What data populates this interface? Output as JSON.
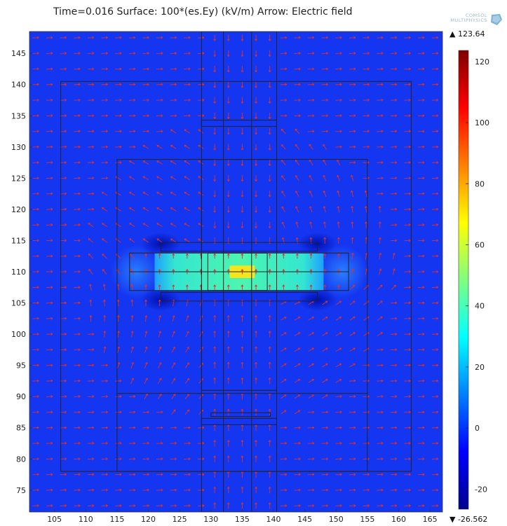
{
  "title": "Time=0.016  Surface: 100*(es.Ey) (kV/m) Arrow: Electric field",
  "logo": {
    "line1": "COMSOL",
    "line2": "MULTIPHYSICS"
  },
  "chart_data": {
    "type": "heatmap",
    "title": "Time=0.016  Surface: 100*(es.Ey) (kV/m) Arrow: Electric field",
    "xlim": [
      101,
      167
    ],
    "ylim": [
      71.5,
      148.5
    ],
    "x_ticks": [
      105,
      110,
      115,
      120,
      125,
      130,
      135,
      140,
      145,
      150,
      155,
      160,
      165
    ],
    "y_ticks": [
      75,
      80,
      85,
      90,
      95,
      100,
      105,
      110,
      115,
      120,
      125,
      130,
      135,
      140,
      145
    ],
    "colorbar": {
      "min": -26.562,
      "max": 123.64,
      "max_label": "▲ 123.64",
      "min_label": "▼ -26.562",
      "ticks": [
        -20,
        0,
        20,
        40,
        60,
        80,
        100,
        120
      ],
      "colormap": "jet"
    },
    "field_regions": [
      {
        "name": "background",
        "value": 0
      },
      {
        "name": "gap-between-plates",
        "x": [
          117,
          152
        ],
        "y": [
          107,
          113
        ],
        "value": 45
      },
      {
        "name": "center-hotspot",
        "x": [
          133,
          137
        ],
        "y": [
          109,
          111
        ],
        "value": 75
      }
    ],
    "arrow_color": "#e0302a"
  },
  "colors": {
    "geometry_lines": "#222222",
    "arrows": "#e0302a"
  }
}
